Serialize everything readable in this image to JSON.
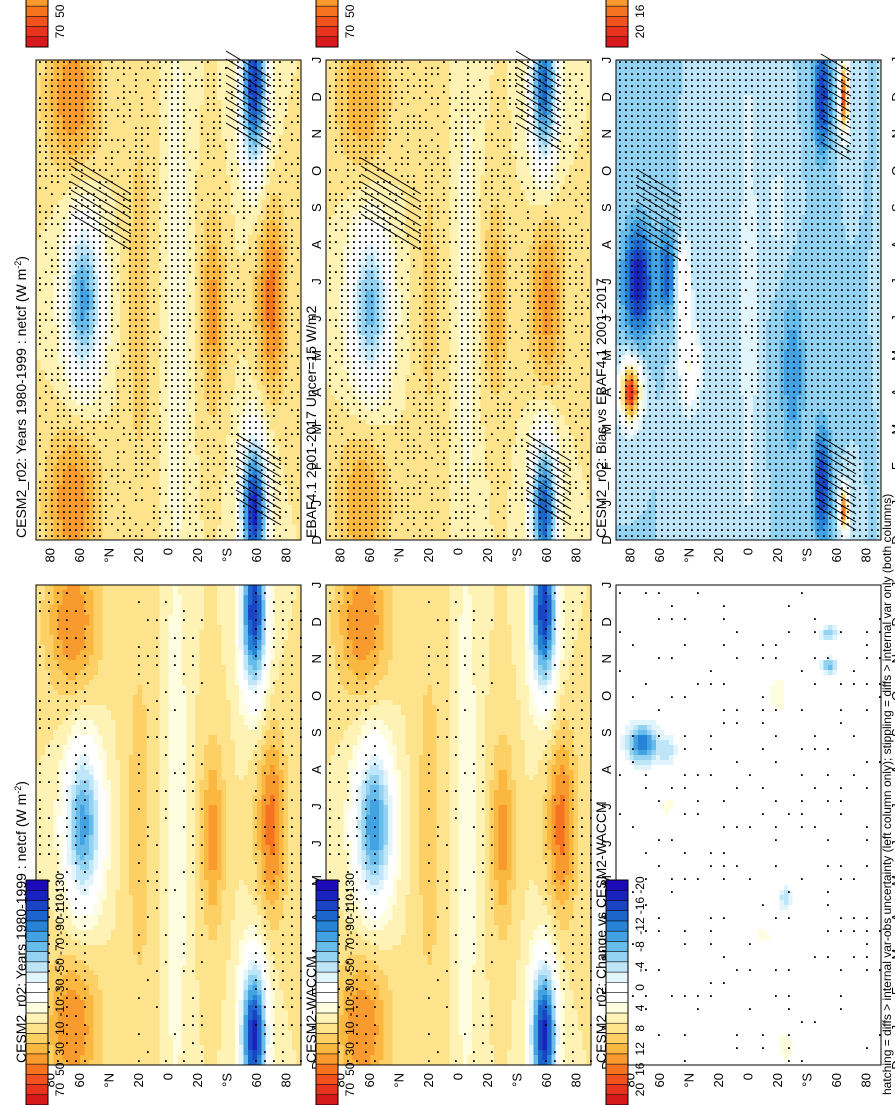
{
  "figure": {
    "footnote": "hatching = diffs > internal var-obs uncertainty (left column only); stippling = diffs > internal var only (both columns)"
  },
  "months": [
    "D",
    "J",
    "F",
    "M",
    "A",
    "M",
    "J",
    "J",
    "A",
    "S",
    "O",
    "N",
    "D",
    "J"
  ],
  "lat_ticks": [
    "80",
    "60",
    "°N",
    "20",
    "0",
    "20",
    "°S",
    "60",
    "80"
  ],
  "colorbars": {
    "abs": {
      "labels": [
        "70",
        "50",
        "30",
        "10",
        "-10",
        "-30",
        "-50",
        "-70",
        "-90",
        "-110",
        "-130"
      ]
    },
    "diff": {
      "labels": [
        "20",
        "16",
        "12",
        "8",
        "4",
        "0",
        "-4",
        "-8",
        "-12",
        "-16",
        "-20"
      ]
    }
  },
  "palettes": {
    "abs": [
      "#d7191c",
      "#e8341c",
      "#f0521e",
      "#f5731f",
      "#f89a2e",
      "#fbb840",
      "#fcd064",
      "#fde48c",
      "#fef2b4",
      "#fffde0",
      "#ffffff",
      "#ffffff",
      "#e2f4fc",
      "#bfe6f8",
      "#93d2f1",
      "#68bcea",
      "#42a2e2",
      "#2783d6",
      "#1d64cc",
      "#1a44c4",
      "#1a22bd",
      "#1b0ab5"
    ],
    "diff": [
      "#d7191c",
      "#e8341c",
      "#f0521e",
      "#f5731f",
      "#f89a2e",
      "#fbb840",
      "#fcd064",
      "#fde48c",
      "#fef2b4",
      "#fffde0",
      "#ffffff",
      "#ffffff",
      "#e2f4fc",
      "#bfe6f8",
      "#93d2f1",
      "#68bcea",
      "#42a2e2",
      "#2783d6",
      "#1d64cc",
      "#1a44c4",
      "#1a22bd",
      "#1b0ab5"
    ]
  },
  "chart_data": [
    {
      "type": "heatmap",
      "id": "p_ul",
      "title": "CESM2_r02: Years 1980-1999 : netcf (W m",
      "title_sup": "-2",
      "title_end": ")",
      "field": "cesm",
      "scale": "abs",
      "stipple": "dense",
      "hatch": true
    },
    {
      "type": "heatmap",
      "id": "p_ur",
      "title": "CESM2_r02: Years 1980-1999 : netcf (W m",
      "title_sup": "-2",
      "title_end": ")",
      "field": "cesm",
      "scale": "abs",
      "stipple": "medium",
      "hatch": false
    },
    {
      "type": "heatmap",
      "id": "p_ml",
      "title": "EBAF4.1 2001-2017 Uncer=15 W/m2",
      "field": "ebaf",
      "scale": "abs",
      "stipple": "dense",
      "hatch": true
    },
    {
      "type": "heatmap",
      "id": "p_mr",
      "title": "CESM2-WACCM",
      "field": "waccm",
      "scale": "abs",
      "stipple": "medium",
      "hatch": false
    },
    {
      "type": "heatmap",
      "id": "p_ll",
      "title": "CESM2_r02: Bias vs EBAF4.1 2001-2017",
      "field": "bias",
      "scale": "diff",
      "stipple": "dense",
      "hatch": true
    },
    {
      "type": "heatmap",
      "id": "p_lr",
      "title": "CESM2_r02: Change vs CESM2-WACCM",
      "field": "change",
      "scale": "diff",
      "stipple": "sparse",
      "hatch": false
    }
  ]
}
